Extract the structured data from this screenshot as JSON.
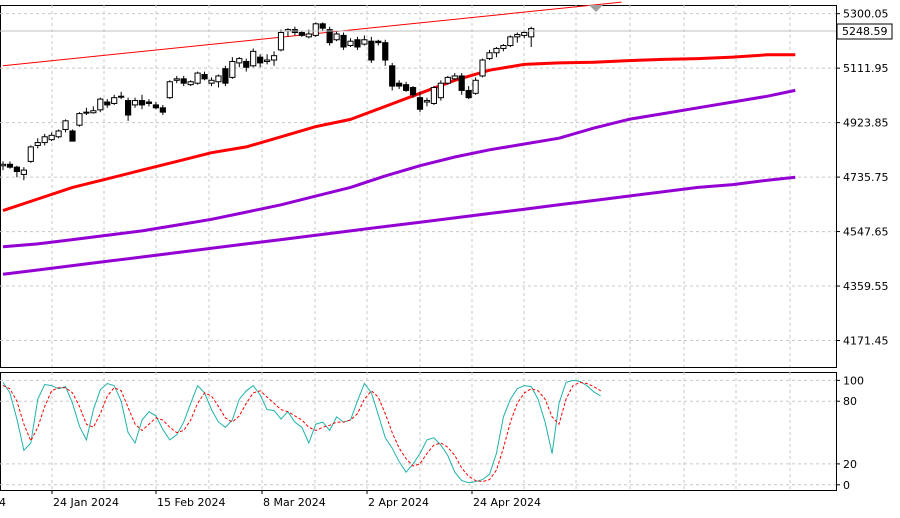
{
  "chart_data": [
    {
      "type": "candlestick",
      "panel": "price",
      "title": "",
      "ylim": [
        4080,
        5330
      ],
      "y_ticks": [
        "5300.05",
        "5111.95",
        "4923.85",
        "4735.75",
        "4547.65",
        "4359.55",
        "4171.45"
      ],
      "x_ticks": [
        "24 Jan 2024",
        "15 Feb 2024",
        "8 Mar 2024",
        "2 Apr 2024",
        "24 Apr 2024"
      ],
      "first_x_tick_partial": "4",
      "current_price": "5248.59",
      "grid": true,
      "candles": [
        [
          4775,
          4790,
          4760,
          4780
        ],
        [
          4780,
          4790,
          4765,
          4770
        ],
        [
          4770,
          4775,
          4735,
          4755
        ],
        [
          4745,
          4770,
          4725,
          4760
        ],
        [
          4790,
          4845,
          4785,
          4840
        ],
        [
          4845,
          4870,
          4835,
          4855
        ],
        [
          4855,
          4885,
          4845,
          4875
        ],
        [
          4865,
          4890,
          4860,
          4880
        ],
        [
          4875,
          4900,
          4870,
          4895
        ],
        [
          4900,
          4935,
          4890,
          4930
        ],
        [
          4895,
          4900,
          4860,
          4860
        ],
        [
          4915,
          4960,
          4910,
          4955
        ],
        [
          4960,
          4975,
          4950,
          4960
        ],
        [
          4958,
          4980,
          4955,
          4965
        ],
        [
          4968,
          5010,
          4960,
          5005
        ],
        [
          4995,
          5005,
          4975,
          4985
        ],
        [
          4990,
          5020,
          4985,
          5010
        ],
        [
          5012,
          5030,
          5005,
          5015
        ],
        [
          5000,
          5010,
          4930,
          4950
        ],
        [
          4985,
          5010,
          4975,
          5000
        ],
        [
          5000,
          5020,
          4970,
          4985
        ],
        [
          4995,
          5005,
          4980,
          4990
        ],
        [
          4985,
          4995,
          4970,
          4975
        ],
        [
          4975,
          4985,
          4950,
          4960
        ],
        [
          5010,
          5070,
          5005,
          5065
        ],
        [
          5070,
          5085,
          5060,
          5075
        ],
        [
          5075,
          5085,
          5050,
          5060
        ],
        [
          5055,
          5070,
          5050,
          5065
        ],
        [
          5060,
          5100,
          5055,
          5095
        ],
        [
          5090,
          5100,
          5070,
          5075
        ],
        [
          5060,
          5080,
          5050,
          5070
        ],
        [
          5065,
          5090,
          5045,
          5085
        ],
        [
          5110,
          5120,
          5050,
          5060
        ],
        [
          5080,
          5150,
          5075,
          5135
        ],
        [
          5130,
          5150,
          5115,
          5145
        ],
        [
          5135,
          5145,
          5100,
          5115
        ],
        [
          5120,
          5180,
          5115,
          5170
        ],
        [
          5150,
          5160,
          5115,
          5130
        ],
        [
          5135,
          5160,
          5125,
          5140
        ],
        [
          5140,
          5170,
          5120,
          5155
        ],
        [
          5175,
          5245,
          5170,
          5235
        ],
        [
          5240,
          5250,
          5220,
          5245
        ],
        [
          5245,
          5255,
          5225,
          5235
        ],
        [
          5235,
          5240,
          5220,
          5225
        ],
        [
          5220,
          5245,
          5215,
          5230
        ],
        [
          5225,
          5270,
          5220,
          5265
        ],
        [
          5265,
          5270,
          5240,
          5250
        ],
        [
          5245,
          5255,
          5190,
          5200
        ],
        [
          5210,
          5240,
          5205,
          5230
        ],
        [
          5225,
          5235,
          5175,
          5185
        ],
        [
          5190,
          5215,
          5185,
          5205
        ],
        [
          5210,
          5220,
          5175,
          5185
        ],
        [
          5195,
          5225,
          5190,
          5210
        ],
        [
          5205,
          5220,
          5130,
          5140
        ],
        [
          5205,
          5210,
          5190,
          5200
        ],
        [
          5200,
          5210,
          5120,
          5140
        ],
        [
          5120,
          5130,
          5035,
          5050
        ],
        [
          5060,
          5070,
          5040,
          5050
        ],
        [
          5055,
          5065,
          5030,
          5035
        ],
        [
          5045,
          5050,
          5010,
          5020
        ],
        [
          5010,
          5030,
          4960,
          4970
        ],
        [
          4995,
          5010,
          4980,
          5000
        ],
        [
          4990,
          5050,
          4985,
          5045
        ],
        [
          5010,
          5070,
          5000,
          5060
        ],
        [
          5060,
          5085,
          5055,
          5080
        ],
        [
          5075,
          5095,
          5070,
          5085
        ],
        [
          5085,
          5095,
          5020,
          5035
        ],
        [
          5035,
          5050,
          5005,
          5010
        ],
        [
          5025,
          5080,
          5020,
          5070
        ],
        [
          5085,
          5145,
          5080,
          5140
        ],
        [
          5145,
          5175,
          5140,
          5165
        ],
        [
          5165,
          5185,
          5150,
          5180
        ],
        [
          5180,
          5195,
          5170,
          5190
        ],
        [
          5190,
          5225,
          5185,
          5220
        ],
        [
          5220,
          5235,
          5200,
          5228
        ],
        [
          5225,
          5240,
          5215,
          5235
        ],
        [
          5220,
          5255,
          5185,
          5248.59
        ]
      ],
      "series": [
        {
          "color": "#ff0000",
          "width": 3,
          "points": [
            [
              0,
              4620
            ],
            [
              5,
              4660
            ],
            [
              10,
              4700
            ],
            [
              15,
              4730
            ],
            [
              20,
              4760
            ],
            [
              25,
              4790
            ],
            [
              30,
              4820
            ],
            [
              35,
              4840
            ],
            [
              40,
              4875
            ],
            [
              45,
              4910
            ],
            [
              50,
              4935
            ],
            [
              55,
              4980
            ],
            [
              60,
              5025
            ],
            [
              65,
              5070
            ],
            [
              70,
              5105
            ],
            [
              75,
              5125
            ],
            [
              80,
              5130
            ],
            [
              85,
              5132
            ],
            [
              90,
              5138
            ],
            [
              95,
              5142
            ],
            [
              100,
              5145
            ],
            [
              105,
              5150
            ],
            [
              110,
              5158
            ],
            [
              114,
              5158
            ]
          ]
        },
        {
          "color": "#9400d3",
          "width": 3,
          "points": [
            [
              0,
              4495
            ],
            [
              5,
              4505
            ],
            [
              10,
              4520
            ],
            [
              15,
              4535
            ],
            [
              20,
              4550
            ],
            [
              25,
              4570
            ],
            [
              30,
              4590
            ],
            [
              35,
              4615
            ],
            [
              40,
              4640
            ],
            [
              45,
              4670
            ],
            [
              50,
              4700
            ],
            [
              55,
              4740
            ],
            [
              60,
              4775
            ],
            [
              65,
              4805
            ],
            [
              70,
              4830
            ],
            [
              75,
              4850
            ],
            [
              80,
              4870
            ],
            [
              85,
              4905
            ],
            [
              90,
              4935
            ],
            [
              95,
              4955
            ],
            [
              100,
              4975
            ],
            [
              105,
              4995
            ],
            [
              110,
              5015
            ],
            [
              114,
              5035
            ]
          ]
        },
        {
          "color": "#9400d3",
          "width": 3,
          "points": [
            [
              0,
              4400
            ],
            [
              5,
              4415
            ],
            [
              10,
              4430
            ],
            [
              15,
              4445
            ],
            [
              20,
              4460
            ],
            [
              25,
              4475
            ],
            [
              30,
              4490
            ],
            [
              35,
              4505
            ],
            [
              40,
              4520
            ],
            [
              45,
              4535
            ],
            [
              50,
              4550
            ],
            [
              55,
              4565
            ],
            [
              60,
              4580
            ],
            [
              65,
              4595
            ],
            [
              70,
              4610
            ],
            [
              75,
              4625
            ],
            [
              80,
              4640
            ],
            [
              85,
              4655
            ],
            [
              90,
              4670
            ],
            [
              95,
              4685
            ],
            [
              100,
              4700
            ],
            [
              105,
              4710
            ],
            [
              110,
              4725
            ],
            [
              114,
              4735
            ]
          ]
        },
        {
          "color": "#ff0000",
          "width": 1,
          "points": [
            [
              0,
              5120
            ],
            [
              89,
              5340
            ]
          ]
        }
      ]
    },
    {
      "type": "line",
      "panel": "stochastic oscillator",
      "title": "",
      "ylim": [
        -5,
        108
      ],
      "y_ticks": [
        "100",
        "80",
        "20",
        "0"
      ],
      "series": [
        {
          "style": "solid",
          "color": "#20b2aa",
          "values": [
            98,
            88,
            63,
            33,
            40,
            82,
            96,
            95,
            92,
            94,
            78,
            56,
            43,
            72,
            91,
            97,
            95,
            80,
            50,
            40,
            62,
            70,
            66,
            53,
            43,
            48,
            60,
            78,
            95,
            88,
            72,
            60,
            55,
            62,
            82,
            90,
            95,
            86,
            72,
            71,
            63,
            70,
            60,
            55,
            40,
            58,
            60,
            52,
            65,
            60,
            62,
            80,
            97,
            88,
            67,
            45,
            35,
            22,
            12,
            20,
            30,
            43,
            45,
            38,
            28,
            12,
            4,
            2,
            3,
            5,
            10,
            30,
            65,
            82,
            92,
            95,
            94,
            82,
            60,
            30,
            78,
            98,
            100,
            99,
            95,
            89,
            85
          ]
        },
        {
          "style": "dashed",
          "color": "#ff0000",
          "values": [
            95,
            92,
            80,
            58,
            42,
            55,
            75,
            90,
            93,
            93,
            88,
            75,
            58,
            55,
            68,
            85,
            93,
            90,
            74,
            58,
            52,
            58,
            64,
            62,
            55,
            50,
            52,
            62,
            78,
            88,
            85,
            75,
            64,
            60,
            66,
            78,
            88,
            90,
            84,
            78,
            72,
            70,
            66,
            62,
            55,
            52,
            55,
            57,
            60,
            60,
            62,
            68,
            82,
            90,
            84,
            68,
            50,
            35,
            25,
            18,
            20,
            30,
            38,
            40,
            36,
            28,
            16,
            8,
            4,
            3,
            5,
            14,
            35,
            60,
            78,
            88,
            92,
            90,
            82,
            65,
            58,
            82,
            95,
            98,
            97,
            94,
            90
          ]
        }
      ]
    }
  ]
}
